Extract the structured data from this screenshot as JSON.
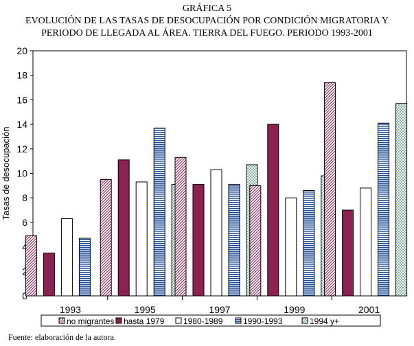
{
  "header": {
    "figure_label": "GRÁFICA 5",
    "title_line1": "EVOLUCIÓN DE LAS TASAS DE DESOCUPACIÓN POR CONDICIÓN MIGRATORIA Y",
    "title_line2": "PERIODO DE LLEGADA AL ÁREA. TIERRA DEL FUEGO. PERIODO 1993-2001"
  },
  "footer": {
    "source": "Fuente: elaboración de la autora."
  },
  "chart_data": {
    "type": "bar",
    "ylabel": "Tasas de desocupación",
    "xlabel": "",
    "ylim": [
      0,
      20
    ],
    "yticks": [
      0,
      2,
      4,
      6,
      8,
      10,
      12,
      14,
      16,
      18,
      20
    ],
    "grid": false,
    "legend": "bottom",
    "categories": [
      "1993",
      "1995",
      "1997",
      "1999",
      "2001"
    ],
    "series": [
      {
        "name": "no migrantes",
        "values": [
          4.9,
          9.5,
          11.3,
          9.0,
          17.4
        ],
        "pattern": "diagonal",
        "color": "#8B2252"
      },
      {
        "name": "hasta 1979",
        "values": [
          3.5,
          11.1,
          9.1,
          14.0,
          7.0
        ],
        "pattern": "solid",
        "color": "#8B2252"
      },
      {
        "name": "1980-1989",
        "values": [
          6.3,
          9.3,
          10.3,
          8.0,
          8.8
        ],
        "pattern": "white",
        "color": "#000000"
      },
      {
        "name": "1990-1993",
        "values": [
          4.7,
          13.7,
          9.1,
          8.6,
          14.1
        ],
        "pattern": "horizontal",
        "color": "#1F4E9A"
      },
      {
        "name": "1994 y+",
        "values": [
          null,
          9.1,
          10.7,
          9.8,
          15.7
        ],
        "pattern": "dots",
        "color": "#2E8B57"
      }
    ]
  }
}
